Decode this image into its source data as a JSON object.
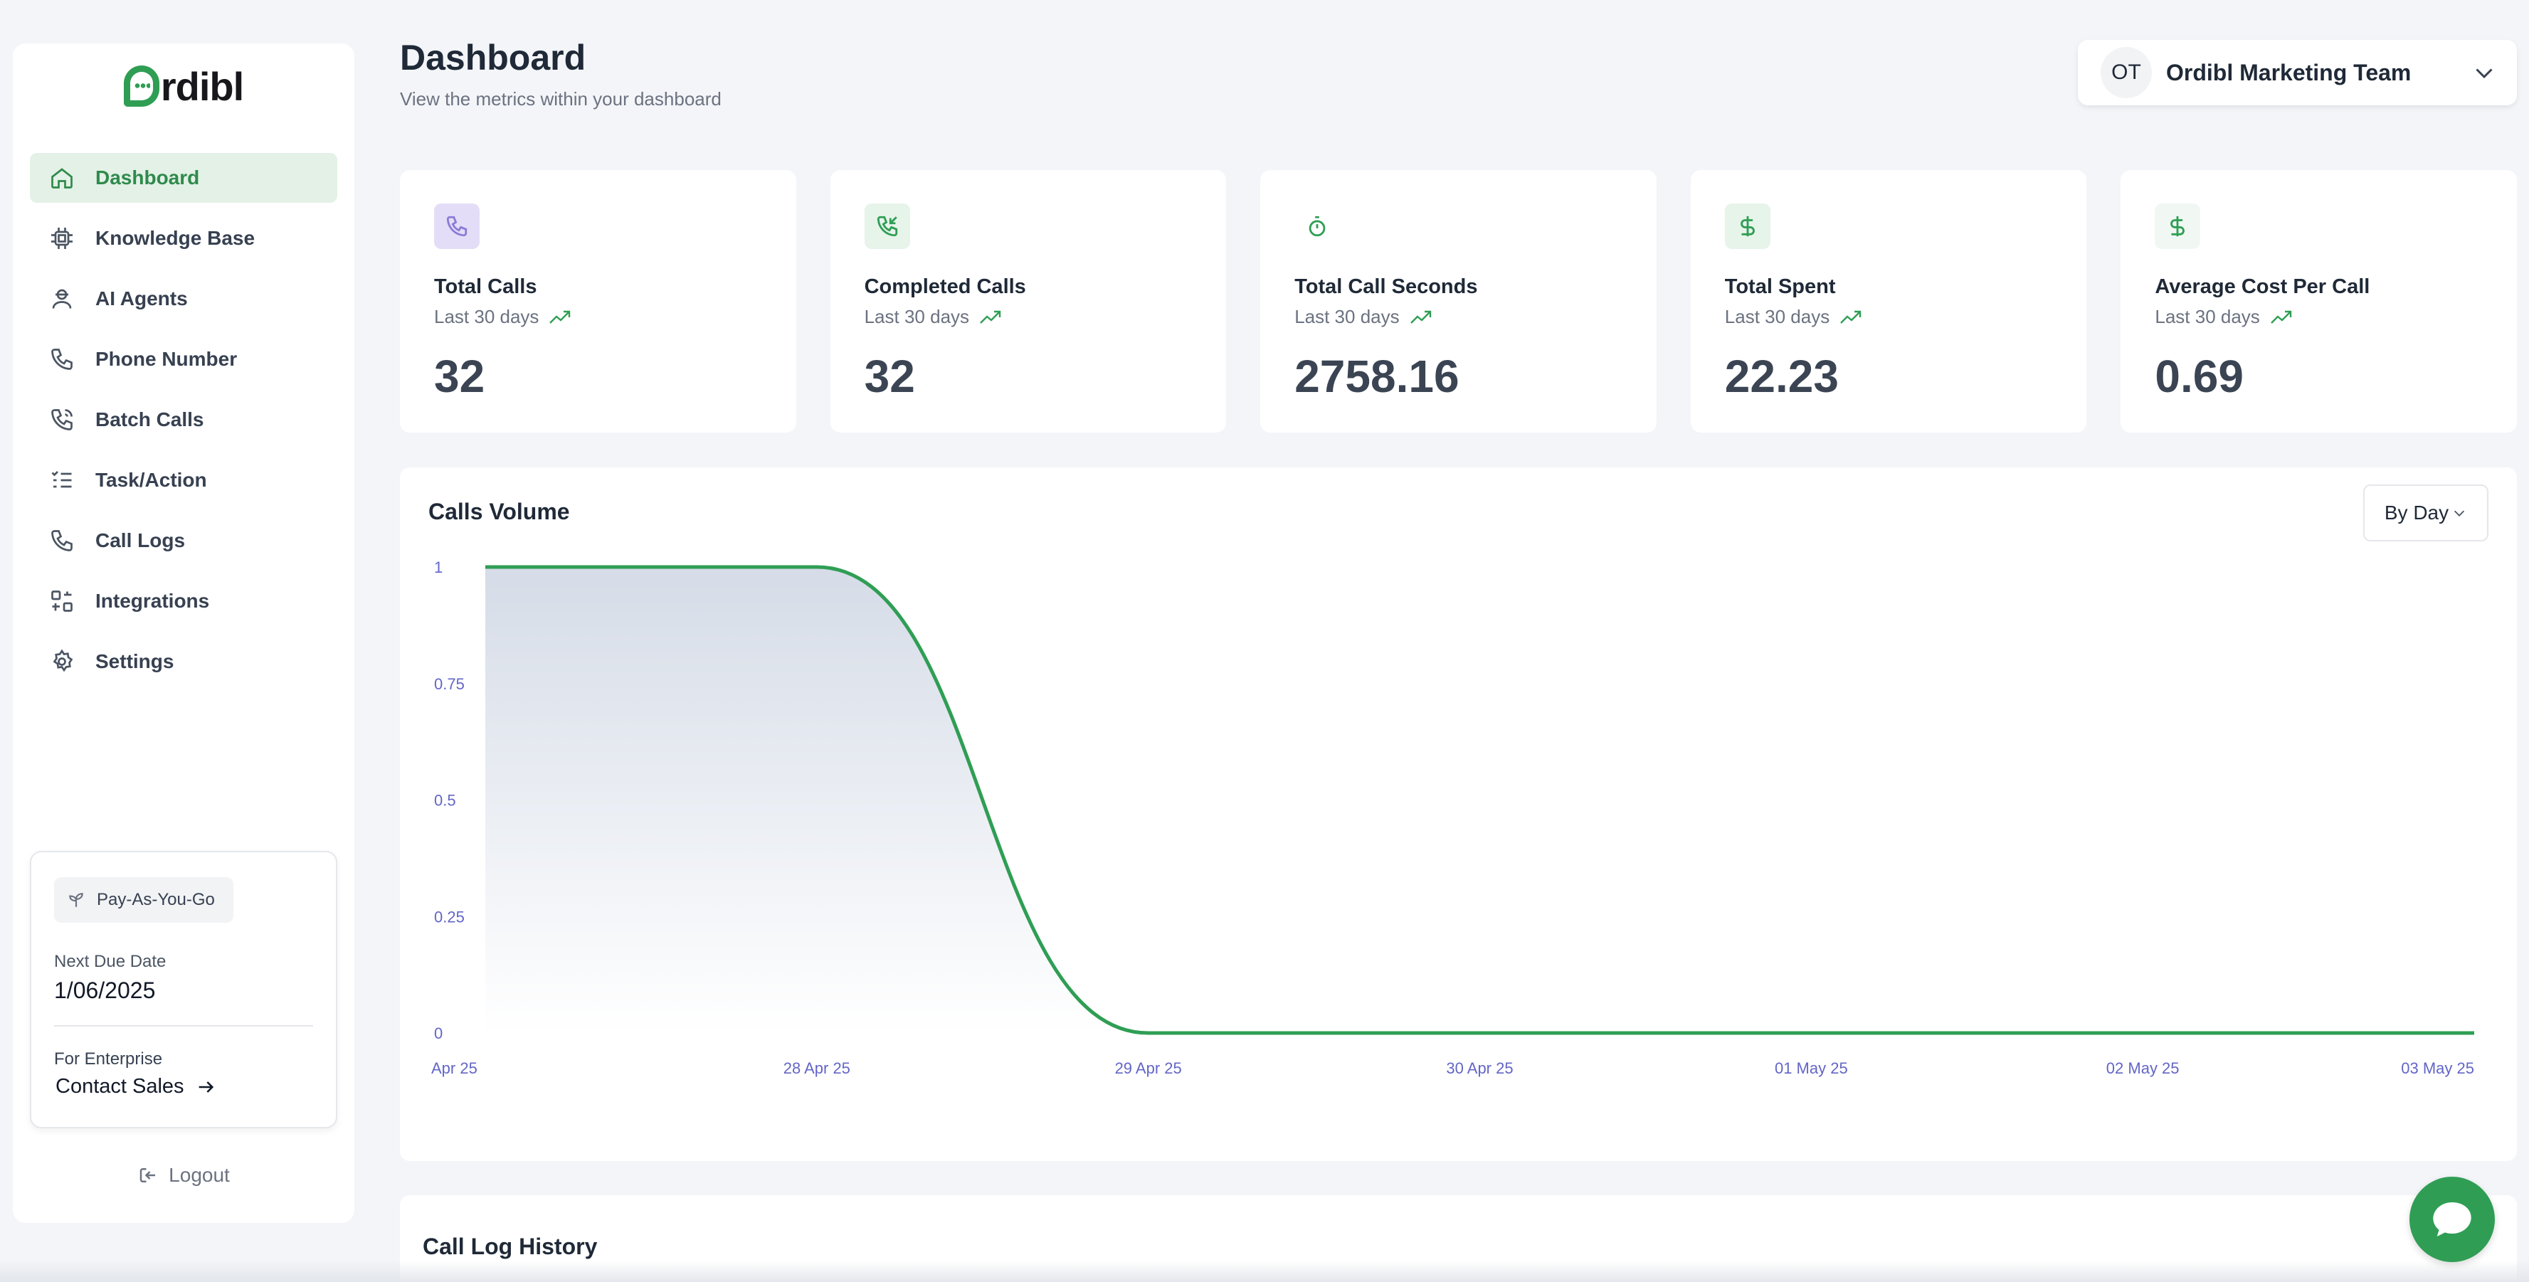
{
  "app": {
    "logo_text": "rdibl"
  },
  "sidebar": {
    "items": [
      {
        "label": "Dashboard",
        "icon": "home-icon",
        "active": true
      },
      {
        "label": "Knowledge Base",
        "icon": "chip-icon"
      },
      {
        "label": "AI Agents",
        "icon": "agent-icon"
      },
      {
        "label": "Phone Number",
        "icon": "phone-icon"
      },
      {
        "label": "Batch Calls",
        "icon": "phone-ring-icon"
      },
      {
        "label": "Task/Action",
        "icon": "list-check-icon"
      },
      {
        "label": "Call Logs",
        "icon": "phone-icon"
      },
      {
        "label": "Integrations",
        "icon": "integrations-icon"
      },
      {
        "label": "Settings",
        "icon": "gear-icon"
      }
    ],
    "plan": {
      "badge": "Pay-As-You-Go",
      "due_label": "Next Due Date",
      "due_value": "1/06/2025",
      "enterprise_label": "For Enterprise",
      "contact_label": "Contact Sales"
    },
    "logout_label": "Logout"
  },
  "header": {
    "title": "Dashboard",
    "subtitle": "View the metrics within your dashboard",
    "team": {
      "initials": "OT",
      "name": "Ordibl Marketing Team"
    }
  },
  "stats": [
    {
      "title": "Total Calls",
      "period": "Last 30 days",
      "value": "32",
      "icon": "phone-icon",
      "icon_bg": "#e4ddf7",
      "icon_color": "#8b7bd8"
    },
    {
      "title": "Completed Calls",
      "period": "Last 30 days",
      "value": "32",
      "icon": "phone-incoming-icon",
      "icon_bg": "#e6f4ea",
      "icon_color": "#2f9e54"
    },
    {
      "title": "Total Call Seconds",
      "period": "Last 30 days",
      "value": "2758.16",
      "icon": "stopwatch-icon",
      "icon_bg": "#ffffff",
      "icon_color": "#2f9e54"
    },
    {
      "title": "Total Spent",
      "period": "Last 30 days",
      "value": "22.23",
      "icon": "dollar-icon",
      "icon_bg": "#e6f4ea",
      "icon_color": "#2f9e54"
    },
    {
      "title": "Average Cost Per Call",
      "period": "Last 30 days",
      "value": "0.69",
      "icon": "dollar-icon",
      "icon_bg": "#f1f8f3",
      "icon_color": "#2f9e54"
    }
  ],
  "chart_card": {
    "title": "Calls Volume",
    "granularity": "By Day"
  },
  "chart_data": {
    "type": "area",
    "title": "Calls Volume",
    "x": [
      "Apr 25",
      "28 Apr 25",
      "29 Apr 25",
      "30 Apr 25",
      "01 May 25",
      "02 May 25",
      "03 May 25"
    ],
    "values": [
      1,
      1,
      0,
      0,
      0,
      0,
      0
    ],
    "ylim": [
      0,
      1
    ],
    "yticks": [
      "1",
      "0.75",
      "0.5",
      "0.25",
      "0"
    ],
    "grid": false,
    "line_color": "#2f9e54",
    "fill_color": "#d3dae6"
  },
  "log_card": {
    "title": "Call Log History"
  }
}
